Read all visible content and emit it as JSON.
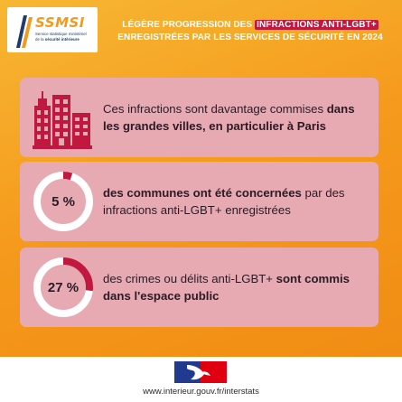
{
  "logo": {
    "name": "SSMSI",
    "subtitle_line1": "Service statistique ministériel",
    "subtitle_line2_prefix": "de la ",
    "subtitle_line2_bold": "sécurité intérieure"
  },
  "headline": {
    "line1_prefix": "LÉGÈRE PROGRESSION DES ",
    "line1_highlight": "INFRACTIONS ANTI-LGBT+",
    "line2": "ENREGISTRÉES PAR LES SERVICES DE SÉCURITÉ EN 2024"
  },
  "cards": [
    {
      "icon": "city-buildings-icon",
      "text_plain": "Ces infractions sont davantage commises ",
      "text_bold": "dans les grandes villes, en particulier à Paris"
    },
    {
      "value_label": "5 %",
      "value_fraction": 0.05,
      "text_bold": "des communes ont été concernées",
      "text_plain": " par des infractions anti-LGBT+ enregistrées"
    },
    {
      "value_label": "27 %",
      "value_fraction": 0.27,
      "text_plain": "des crimes ou délits anti-LGBT+ ",
      "text_bold": "sont commis dans l'espace public"
    }
  ],
  "footer": {
    "flag": "french-republic-flag-icon",
    "url": "www.interieur.gouv.fr/interstats"
  },
  "colors": {
    "background": "#f59a1c",
    "card": "#e7a9b2",
    "accent": "#c0183f",
    "ring_track": "#ffffff"
  }
}
